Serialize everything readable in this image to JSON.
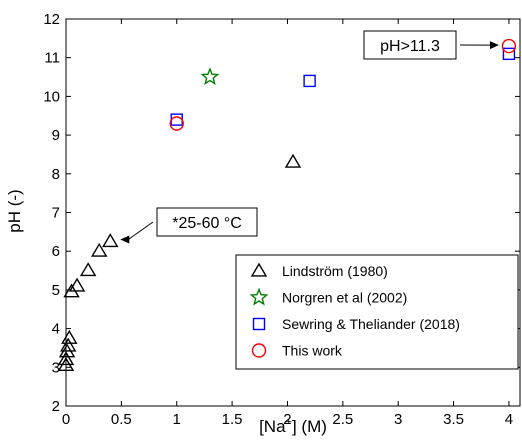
{
  "chart_data": {
    "type": "scatter",
    "title": "",
    "xlabel_prefix": "[Na",
    "xlabel_sup": "+",
    "xlabel_suffix": "] (M)",
    "ylabel": "pH (-)",
    "xlim": [
      0,
      4.1
    ],
    "ylim": [
      2,
      12
    ],
    "xticks": [
      0,
      0.5,
      1,
      1.5,
      2,
      2.5,
      3,
      3.5,
      4
    ],
    "xtick_labels": [
      "0",
      "0.5",
      "1",
      "1.5",
      "2",
      "2.5",
      "3",
      "3.5",
      "4"
    ],
    "yticks": [
      2,
      3,
      4,
      5,
      6,
      7,
      8,
      9,
      10,
      11,
      12
    ],
    "ytick_labels": [
      "2",
      "3",
      "4",
      "5",
      "6",
      "7",
      "8",
      "9",
      "10",
      "11",
      "12"
    ],
    "grid": false,
    "legend_position": "bottom-right",
    "series": [
      {
        "name": "Lindström (1980)",
        "marker": "triangle",
        "color": "#000000",
        "x": [
          0.0,
          0.0,
          0.01,
          0.02,
          0.03,
          0.05,
          0.1,
          0.2,
          0.3,
          0.4,
          2.05
        ],
        "y": [
          3.05,
          3.2,
          3.4,
          3.55,
          3.75,
          4.95,
          5.1,
          5.5,
          6.0,
          6.25,
          8.3
        ]
      },
      {
        "name": "Norgren et al (2002)",
        "marker": "star",
        "color": "#008000",
        "x": [
          1.3
        ],
        "y": [
          10.5
        ]
      },
      {
        "name": "Sewring & Theliander (2018)",
        "marker": "square",
        "color": "#0000ff",
        "x": [
          1.0,
          2.2,
          4.0
        ],
        "y": [
          9.4,
          10.4,
          11.1
        ]
      },
      {
        "name": "This work",
        "marker": "circle",
        "color": "#ff0000",
        "x": [
          1.0,
          4.0
        ],
        "y": [
          9.3,
          11.3
        ]
      }
    ],
    "annotations": [
      {
        "text": "*25-60 °C",
        "target_x": 0.4,
        "target_y": 6.25
      },
      {
        "text": "pH>11.3",
        "target_x": 4.0,
        "target_y": 11.3
      }
    ]
  }
}
